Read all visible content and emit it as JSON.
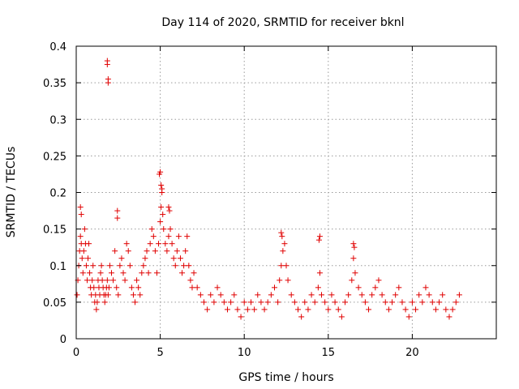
{
  "chart_data": {
    "type": "scatter",
    "title": "Day 114 of 2020, SRMTID for receiver bknl",
    "xlabel": "GPS time / hours",
    "ylabel": "SRMTID / TECUs",
    "xlim": [
      0,
      25
    ],
    "ylim": [
      0,
      0.4
    ],
    "xticks": [
      0,
      5,
      10,
      15,
      20
    ],
    "xtick_labels": [
      "0",
      "5",
      "10",
      "15",
      "20"
    ],
    "yticks": [
      0,
      0.05,
      0.1,
      0.15,
      0.2,
      0.25,
      0.3,
      0.35,
      0.4
    ],
    "ytick_labels": [
      "0",
      "0.05",
      "0.1",
      "0.15",
      "0.2",
      "0.25",
      "0.3",
      "0.35",
      "0.4"
    ],
    "grid": true,
    "marker": "+",
    "color": "#e00000",
    "series": [
      {
        "name": "SRMTID",
        "x": [
          0.05,
          0.1,
          0.15,
          0.2,
          0.25,
          0.3,
          0.35,
          0.4,
          0.45,
          0.5,
          0.55,
          0.6,
          0.65,
          0.7,
          0.75,
          0.8,
          0.85,
          0.9,
          0.95,
          1.0,
          1.05,
          1.1,
          1.15,
          1.2,
          1.25,
          1.3,
          1.35,
          1.4,
          1.45,
          1.5,
          1.55,
          1.6,
          1.65,
          1.7,
          1.75,
          1.8,
          1.85,
          1.9,
          1.95,
          2.0,
          2.1,
          2.2,
          2.3,
          2.4,
          2.5,
          2.6,
          2.7,
          2.8,
          2.9,
          3.0,
          3.1,
          3.2,
          3.3,
          3.4,
          3.5,
          3.6,
          3.7,
          3.8,
          3.9,
          4.0,
          4.1,
          4.2,
          4.3,
          4.4,
          4.5,
          4.6,
          4.7,
          4.8,
          4.9,
          5.0,
          5.05,
          5.1,
          5.15,
          5.2,
          5.3,
          5.4,
          5.5,
          5.6,
          5.7,
          5.8,
          5.9,
          6.0,
          6.1,
          6.2,
          6.3,
          6.4,
          6.5,
          6.6,
          6.7,
          6.8,
          6.9,
          7.0,
          7.2,
          7.4,
          7.6,
          7.8,
          8.0,
          8.2,
          8.4,
          8.6,
          8.8,
          9.0,
          9.2,
          9.4,
          9.6,
          9.8,
          10.0,
          10.2,
          10.4,
          10.6,
          10.8,
          11.0,
          11.2,
          11.4,
          11.6,
          11.8,
          12.0,
          12.1,
          12.2,
          12.3,
          12.4,
          12.5,
          12.6,
          12.8,
          13.0,
          13.2,
          13.4,
          13.6,
          13.8,
          14.0,
          14.2,
          14.4,
          14.5,
          14.6,
          14.8,
          15.0,
          15.2,
          15.4,
          15.6,
          15.8,
          16.0,
          16.2,
          16.4,
          16.5,
          16.6,
          16.8,
          17.0,
          17.2,
          17.4,
          17.6,
          17.8,
          18.0,
          18.2,
          18.4,
          18.6,
          18.8,
          19.0,
          19.2,
          19.4,
          19.6,
          19.8,
          20.0,
          20.2,
          20.4,
          20.6,
          20.8,
          21.0,
          21.2,
          21.4,
          21.6,
          21.8,
          22.0,
          22.2,
          22.4,
          22.6,
          22.8,
          1.85,
          1.85,
          1.9,
          1.9,
          2.45,
          2.45,
          0.25,
          0.3,
          4.95,
          5.0,
          5.05,
          5.1,
          5.5,
          5.55,
          14.5,
          14.45,
          12.2,
          12.25,
          16.5,
          16.55
        ],
        "y": [
          0.06,
          0.08,
          0.1,
          0.12,
          0.14,
          0.13,
          0.11,
          0.09,
          0.12,
          0.15,
          0.13,
          0.1,
          0.08,
          0.11,
          0.13,
          0.09,
          0.07,
          0.06,
          0.08,
          0.1,
          0.07,
          0.05,
          0.06,
          0.04,
          0.05,
          0.08,
          0.07,
          0.06,
          0.09,
          0.1,
          0.08,
          0.07,
          0.06,
          0.05,
          0.06,
          0.07,
          0.08,
          0.06,
          0.07,
          0.1,
          0.09,
          0.08,
          0.12,
          0.07,
          0.06,
          0.1,
          0.11,
          0.09,
          0.08,
          0.13,
          0.12,
          0.1,
          0.07,
          0.06,
          0.05,
          0.08,
          0.07,
          0.06,
          0.09,
          0.1,
          0.11,
          0.12,
          0.09,
          0.13,
          0.15,
          0.14,
          0.12,
          0.09,
          0.13,
          0.16,
          0.18,
          0.2,
          0.17,
          0.15,
          0.13,
          0.12,
          0.14,
          0.15,
          0.13,
          0.11,
          0.1,
          0.12,
          0.14,
          0.11,
          0.09,
          0.1,
          0.12,
          0.14,
          0.1,
          0.08,
          0.07,
          0.09,
          0.07,
          0.06,
          0.05,
          0.04,
          0.06,
          0.05,
          0.07,
          0.06,
          0.05,
          0.04,
          0.05,
          0.06,
          0.04,
          0.03,
          0.05,
          0.04,
          0.05,
          0.04,
          0.06,
          0.05,
          0.04,
          0.05,
          0.06,
          0.07,
          0.05,
          0.08,
          0.1,
          0.12,
          0.13,
          0.1,
          0.08,
          0.06,
          0.05,
          0.04,
          0.03,
          0.05,
          0.04,
          0.06,
          0.05,
          0.07,
          0.09,
          0.06,
          0.05,
          0.04,
          0.06,
          0.05,
          0.04,
          0.03,
          0.05,
          0.06,
          0.08,
          0.11,
          0.09,
          0.07,
          0.06,
          0.05,
          0.04,
          0.06,
          0.07,
          0.08,
          0.06,
          0.05,
          0.04,
          0.05,
          0.06,
          0.07,
          0.05,
          0.04,
          0.03,
          0.05,
          0.04,
          0.06,
          0.05,
          0.07,
          0.06,
          0.05,
          0.04,
          0.05,
          0.06,
          0.04,
          0.03,
          0.04,
          0.05,
          0.06,
          0.38,
          0.375,
          0.35,
          0.355,
          0.175,
          0.165,
          0.18,
          0.17,
          0.225,
          0.228,
          0.21,
          0.205,
          0.18,
          0.175,
          0.14,
          0.135,
          0.145,
          0.14,
          0.13,
          0.125
        ]
      }
    ]
  }
}
